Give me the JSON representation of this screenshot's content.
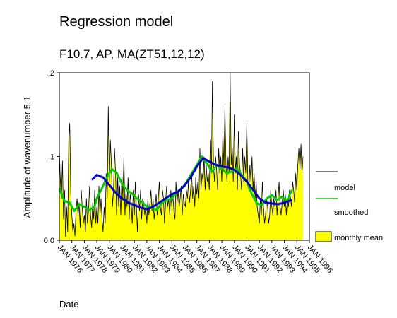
{
  "chart_data": {
    "type": "area",
    "title": "Regression model",
    "subtitle": "F10.7, AP, MA(ZT51,12,12)",
    "xlabel": "Date",
    "ylabel": "Amplitude of wavenumber 5-1",
    "xlim": [
      1976.0,
      1996.0
    ],
    "ylim": [
      0.0,
      0.2
    ],
    "y_ticks": [
      {
        "value": 0.0,
        "label": "0.0"
      },
      {
        "value": 0.1,
        "label": ".1"
      },
      {
        "value": 0.2,
        "label": ".2"
      }
    ],
    "x_ticks": [
      "JAN 1976",
      "JAN 1977",
      "JAN 1978",
      "JAN 1979",
      "JAN 1980",
      "JAN 1981",
      "JAN 1982",
      "JAN 1983",
      "JAN 1984",
      "JAN 1985",
      "JAN 1986",
      "JAN 1987",
      "JAN 1988",
      "JAN 1989",
      "JAN 1990",
      "JAN 1991",
      "JAN 1992",
      "JAN 1993",
      "JAN 1994",
      "JAN 1995",
      "JAN 1996"
    ],
    "legend_position": "right",
    "grid": false,
    "series": [
      {
        "name": "model",
        "color": "#0000cc",
        "x": [
          1978.6,
          1979.0,
          1979.5,
          1980.0,
          1980.5,
          1981.0,
          1981.5,
          1982.0,
          1982.5,
          1983.0,
          1983.5,
          1984.0,
          1984.5,
          1985.0,
          1985.5,
          1986.0,
          1986.5,
          1987.0,
          1987.5,
          1988.0,
          1988.5,
          1989.0,
          1989.5,
          1990.0,
          1990.5,
          1991.0,
          1991.5,
          1992.0,
          1992.5,
          1993.0,
          1993.5,
          1994.0,
          1994.6
        ],
        "y": [
          0.072,
          0.078,
          0.075,
          0.066,
          0.057,
          0.05,
          0.045,
          0.042,
          0.039,
          0.037,
          0.04,
          0.045,
          0.05,
          0.055,
          0.058,
          0.065,
          0.075,
          0.088,
          0.098,
          0.094,
          0.09,
          0.088,
          0.087,
          0.084,
          0.078,
          0.07,
          0.06,
          0.05,
          0.045,
          0.044,
          0.043,
          0.045,
          0.048
        ]
      },
      {
        "name": "smoothed",
        "color": "#00cc00",
        "x": [
          1976.0,
          1976.4,
          1976.8,
          1977.2,
          1977.6,
          1978.0,
          1978.4,
          1978.8,
          1979.0,
          1979.4,
          1979.8,
          1980.2,
          1980.6,
          1981.0,
          1981.4,
          1981.8,
          1982.2,
          1982.6,
          1983.0,
          1983.4,
          1983.8,
          1984.2,
          1984.6,
          1985.0,
          1985.4,
          1985.8,
          1986.2,
          1986.6,
          1987.0,
          1987.4,
          1987.8,
          1988.2,
          1988.6,
          1989.0,
          1989.4,
          1989.8,
          1990.2,
          1990.6,
          1991.0,
          1991.4,
          1991.8,
          1992.2,
          1992.6,
          1993.0,
          1993.4,
          1993.8,
          1994.2,
          1994.6
        ],
        "y": [
          0.062,
          0.047,
          0.045,
          0.035,
          0.043,
          0.04,
          0.036,
          0.04,
          0.05,
          0.062,
          0.075,
          0.085,
          0.08,
          0.068,
          0.06,
          0.056,
          0.05,
          0.046,
          0.04,
          0.038,
          0.036,
          0.045,
          0.048,
          0.05,
          0.058,
          0.062,
          0.07,
          0.08,
          0.09,
          0.1,
          0.092,
          0.082,
          0.09,
          0.085,
          0.08,
          0.082,
          0.086,
          0.078,
          0.07,
          0.055,
          0.044,
          0.042,
          0.05,
          0.054,
          0.048,
          0.052,
          0.047,
          0.06
        ]
      },
      {
        "name": "monthly mean",
        "color": "#ffff00",
        "style": "area",
        "x_start": 1976.0,
        "x_step": 0.0833,
        "y": [
          0.107,
          0.07,
          0.05,
          0.095,
          0.025,
          0.06,
          0.004,
          0.04,
          0.01,
          0.12,
          0.14,
          0.055,
          0.03,
          0.01,
          0.02,
          0.005,
          0.035,
          0.05,
          0.03,
          0.045,
          0.015,
          0.06,
          0.04,
          0.02,
          0.03,
          0.01,
          0.05,
          0.02,
          0.035,
          0.065,
          0.03,
          0.015,
          0.045,
          0.025,
          0.06,
          0.02,
          0.04,
          0.02,
          0.065,
          0.03,
          0.05,
          0.025,
          0.01,
          0.04,
          0.02,
          0.08,
          0.05,
          0.16,
          0.07,
          0.12,
          0.09,
          0.04,
          0.06,
          0.11,
          0.08,
          0.03,
          0.075,
          0.04,
          0.065,
          0.03,
          0.08,
          0.05,
          0.1,
          0.03,
          0.06,
          0.04,
          0.075,
          0.025,
          0.055,
          0.045,
          0.02,
          0.06,
          0.03,
          0.07,
          0.04,
          0.01,
          0.055,
          0.035,
          0.06,
          0.025,
          0.05,
          0.045,
          0.03,
          0.04,
          0.02,
          0.05,
          0.03,
          0.045,
          0.06,
          0.035,
          0.05,
          0.025,
          0.04,
          0.055,
          0.03,
          0.05,
          0.07,
          0.04,
          0.03,
          0.06,
          0.05,
          0.02,
          0.045,
          0.065,
          0.04,
          0.05,
          0.03,
          0.06,
          0.04,
          0.055,
          0.035,
          0.025,
          0.07,
          0.045,
          0.06,
          0.04,
          0.05,
          0.065,
          0.03,
          0.055,
          0.045,
          0.04,
          0.06,
          0.05,
          0.07,
          0.045,
          0.06,
          0.08,
          0.05,
          0.065,
          0.04,
          0.075,
          0.055,
          0.07,
          0.05,
          0.11,
          0.06,
          0.08,
          0.07,
          0.1,
          0.06,
          0.09,
          0.07,
          0.08,
          0.06,
          0.12,
          0.08,
          0.19,
          0.09,
          0.07,
          0.1,
          0.085,
          0.06,
          0.11,
          0.08,
          0.1,
          0.07,
          0.13,
          0.085,
          0.16,
          0.09,
          0.07,
          0.1,
          0.08,
          0.2,
          0.09,
          0.11,
          0.07,
          0.15,
          0.08,
          0.1,
          0.06,
          0.13,
          0.09,
          0.08,
          0.06,
          0.11,
          0.07,
          0.1,
          0.08,
          0.14,
          0.07,
          0.06,
          0.09,
          0.07,
          0.1,
          0.06,
          0.08,
          0.05,
          0.07,
          0.04,
          0.03,
          0.02,
          0.05,
          0.03,
          0.07,
          0.04,
          0.02,
          0.03,
          0.05,
          0.04,
          0.02,
          0.03,
          0.06,
          0.04,
          0.03,
          0.05,
          0.04,
          0.06,
          0.03,
          0.05,
          0.07,
          0.04,
          0.03,
          0.045,
          0.06,
          0.04,
          0.055,
          0.03,
          0.05,
          0.04,
          0.06,
          0.05,
          0.04,
          0.07,
          0.06,
          0.045,
          0.08,
          0.06,
          0.09,
          0.11,
          0.085,
          0.115,
          0.08,
          0.1
        ]
      }
    ]
  }
}
